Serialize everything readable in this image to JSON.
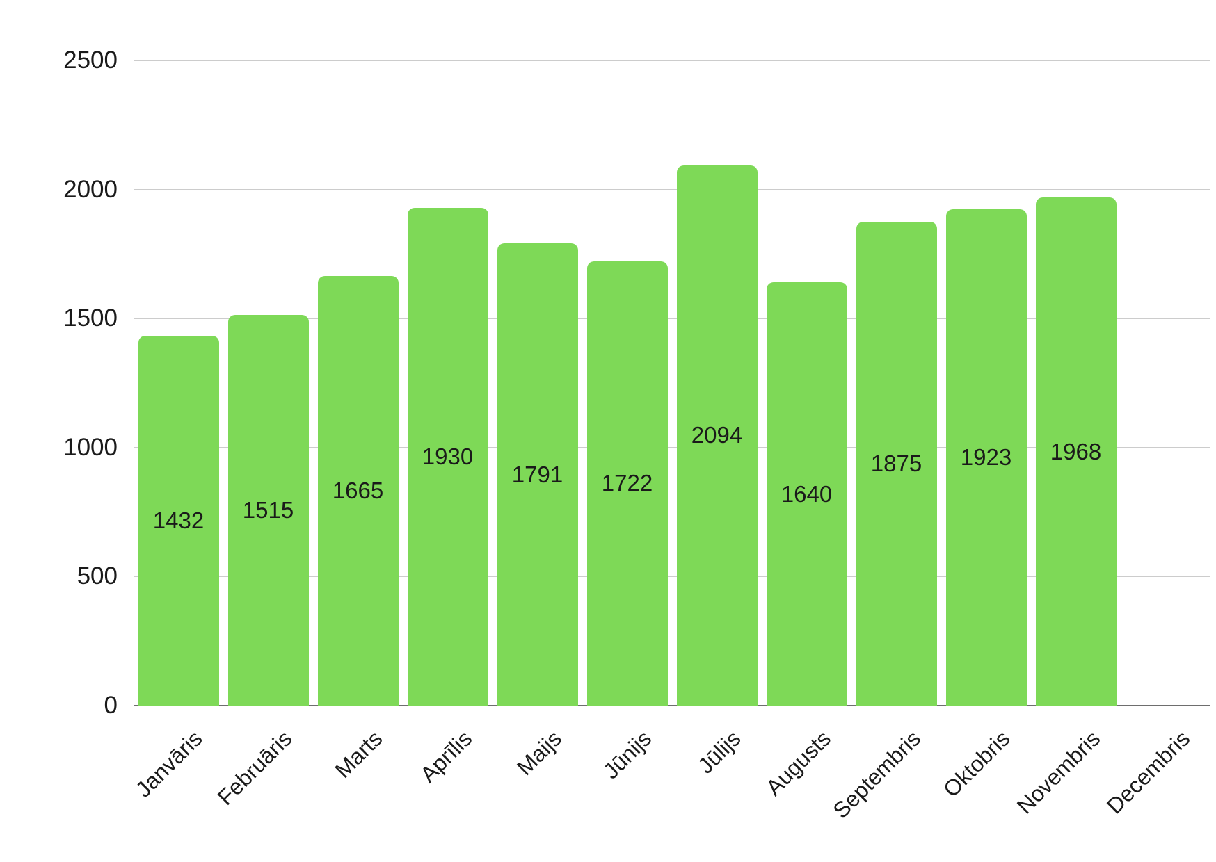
{
  "chart_data": {
    "type": "bar",
    "title": "",
    "xlabel": "",
    "ylabel": "",
    "categories": [
      "Janvāris",
      "Februāris",
      "Marts",
      "Aprīlis",
      "Maijs",
      "Jūnijs",
      "Jūlijs",
      "Augusts",
      "Septembris",
      "Oktobris",
      "Novembris",
      "Decembris"
    ],
    "values": [
      1432,
      1515,
      1665,
      1930,
      1791,
      1722,
      2094,
      1640,
      1875,
      1923,
      1968,
      null
    ],
    "data_labels": [
      "1432",
      "1515",
      "1665",
      "1930",
      "1791",
      "1722",
      "2094",
      "1640",
      "1875",
      "1923",
      "1968",
      ""
    ],
    "ylim": [
      0,
      2500
    ],
    "yticks": [
      0,
      500,
      1000,
      1500,
      2000,
      2500
    ],
    "ytick_labels": [
      "0",
      "500",
      "1000",
      "1500",
      "2000",
      "2500"
    ],
    "grid": true,
    "legend": "none",
    "x_label_rotation_deg": -45,
    "colors": {
      "bar": "#7ed957",
      "value_label": "#1a1a1a",
      "axis_text": "#1a1a1a",
      "gridline": "#cccccc",
      "baseline": "#6e6e6e",
      "background": "#ffffff"
    }
  }
}
